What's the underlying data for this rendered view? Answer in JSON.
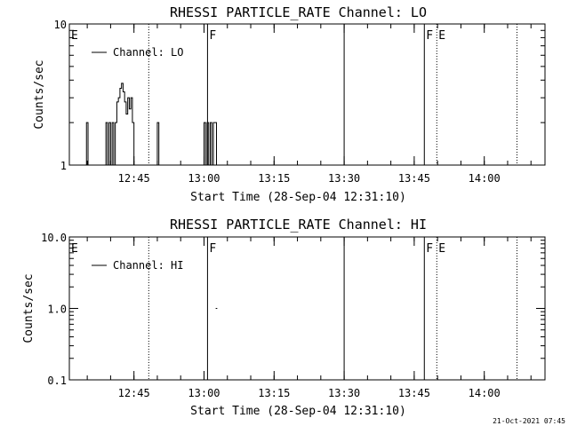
{
  "footer": {
    "timestamp": "21-Oct-2021 07:45"
  },
  "chart_data": [
    {
      "type": "line",
      "title": "RHESSI PARTICLE_RATE Channel: LO",
      "xlabel": "Start Time (28-Sep-04 12:31:10)",
      "ylabel": "Counts/sec",
      "yscale": "log",
      "ylim": [
        1,
        10
      ],
      "yticks": [
        "1",
        "10"
      ],
      "xlim": [
        "12:31:10",
        "14:13:00"
      ],
      "xticks": [
        "12:45",
        "13:00",
        "13:15",
        "13:30",
        "13:45",
        "14:00"
      ],
      "legend": {
        "position": "top-left",
        "entries": [
          "Channel: LO"
        ]
      },
      "flag_labels": [
        {
          "text": "E",
          "time": "12:31:10"
        },
        {
          "text": "F",
          "time": "13:00:45"
        },
        {
          "text": "F",
          "time": "13:47:10"
        },
        {
          "text": "E",
          "time": "13:49:50"
        }
      ],
      "markers": [
        {
          "time": "12:48:10",
          "style": "dotted"
        },
        {
          "time": "13:00:45",
          "style": "solid"
        },
        {
          "time": "13:30:00",
          "style": "solid"
        },
        {
          "time": "13:47:10",
          "style": "solid"
        },
        {
          "time": "13:49:50",
          "style": "dotted"
        },
        {
          "time": "14:07:00",
          "style": "dotted"
        }
      ],
      "series": [
        {
          "values_note": "time (HH:MM:SS), counts/sec",
          "points": [
            [
              "12:34:30",
              1
            ],
            [
              "12:34:50",
              2
            ],
            [
              "12:35:10",
              1
            ],
            [
              "12:38:40",
              1
            ],
            [
              "12:39:00",
              2
            ],
            [
              "12:39:20",
              1
            ],
            [
              "12:39:40",
              2
            ],
            [
              "12:40:00",
              1
            ],
            [
              "12:40:20",
              2
            ],
            [
              "12:40:40",
              1
            ],
            [
              "12:41:00",
              2
            ],
            [
              "12:41:20",
              2.8
            ],
            [
              "12:41:40",
              3
            ],
            [
              "12:42:00",
              3.5
            ],
            [
              "12:42:20",
              3.8
            ],
            [
              "12:42:40",
              3.3
            ],
            [
              "12:43:00",
              2.8
            ],
            [
              "12:43:20",
              2.3
            ],
            [
              "12:43:40",
              3
            ],
            [
              "12:44:00",
              2.5
            ],
            [
              "12:44:20",
              3
            ],
            [
              "12:44:40",
              2
            ],
            [
              "12:45:00",
              1
            ],
            [
              "12:49:40",
              1
            ],
            [
              "12:50:00",
              2
            ],
            [
              "12:50:20",
              1
            ],
            [
              "12:59:40",
              1
            ],
            [
              "13:00:00",
              2
            ],
            [
              "13:00:20",
              1
            ],
            [
              "13:00:40",
              2
            ],
            [
              "13:01:00",
              1
            ],
            [
              "13:01:20",
              2
            ],
            [
              "13:01:40",
              1
            ],
            [
              "13:02:00",
              2
            ],
            [
              "13:02:20",
              2
            ],
            [
              "13:02:40",
              1
            ]
          ]
        }
      ]
    },
    {
      "type": "line",
      "title": "RHESSI PARTICLE_RATE Channel: HI",
      "xlabel": "Start Time (28-Sep-04 12:31:10)",
      "ylabel": "Counts/sec",
      "yscale": "log",
      "ylim": [
        0.1,
        10
      ],
      "yticks": [
        "0.1",
        "1.0",
        "10.0"
      ],
      "xlim": [
        "12:31:10",
        "14:13:00"
      ],
      "xticks": [
        "12:45",
        "13:00",
        "13:15",
        "13:30",
        "13:45",
        "14:00"
      ],
      "legend": {
        "position": "top-left",
        "entries": [
          "Channel: HI"
        ]
      },
      "flag_labels": [
        {
          "text": "E",
          "time": "12:31:10"
        },
        {
          "text": "F",
          "time": "13:00:45"
        },
        {
          "text": "F",
          "time": "13:47:10"
        },
        {
          "text": "E",
          "time": "13:49:50"
        }
      ],
      "markers": [
        {
          "time": "12:48:10",
          "style": "dotted"
        },
        {
          "time": "13:00:45",
          "style": "solid"
        },
        {
          "time": "13:30:00",
          "style": "solid"
        },
        {
          "time": "13:47:10",
          "style": "solid"
        },
        {
          "time": "13:49:50",
          "style": "dotted"
        },
        {
          "time": "14:07:00",
          "style": "dotted"
        }
      ],
      "series": [
        {
          "values_note": "time (HH:MM:SS), counts/sec",
          "points": [
            [
              "13:02:30",
              1.0
            ],
            [
              "13:02:50",
              1.0
            ]
          ]
        }
      ]
    }
  ]
}
